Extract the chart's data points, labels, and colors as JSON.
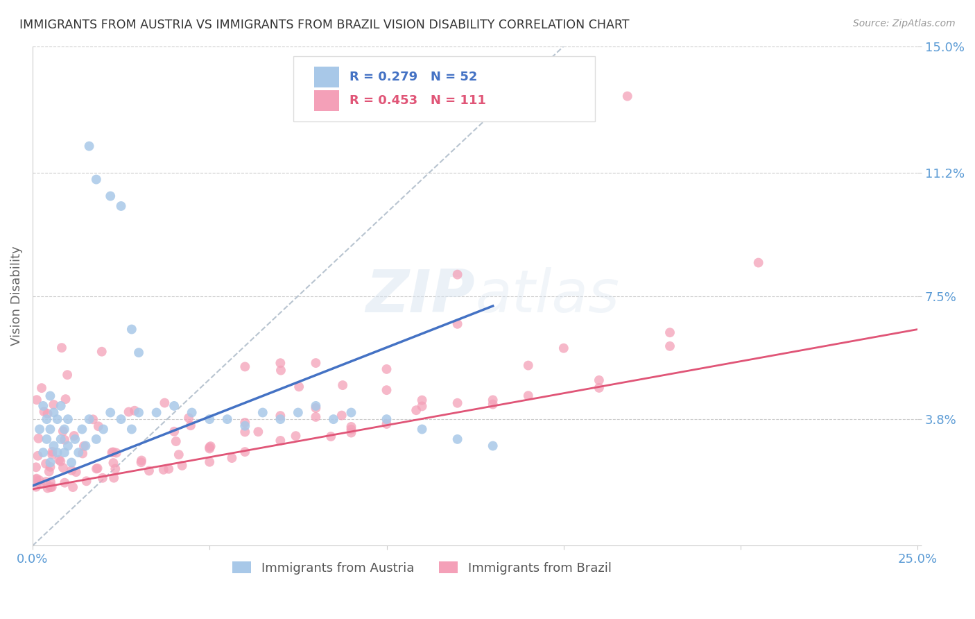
{
  "title": "IMMIGRANTS FROM AUSTRIA VS IMMIGRANTS FROM BRAZIL VISION DISABILITY CORRELATION CHART",
  "source": "Source: ZipAtlas.com",
  "ylabel": "Vision Disability",
  "xlim": [
    0.0,
    0.25
  ],
  "ylim": [
    0.0,
    0.15
  ],
  "xtick_positions": [
    0.0,
    0.05,
    0.1,
    0.15,
    0.2,
    0.25
  ],
  "xticklabels": [
    "0.0%",
    "",
    "",
    "",
    "",
    "25.0%"
  ],
  "ytick_positions": [
    0.0,
    0.038,
    0.075,
    0.112,
    0.15
  ],
  "yticklabels": [
    "",
    "3.8%",
    "7.5%",
    "11.2%",
    "15.0%"
  ],
  "legend_austria": "Immigrants from Austria",
  "legend_brazil": "Immigrants from Brazil",
  "r_austria": 0.279,
  "n_austria": 52,
  "r_brazil": 0.453,
  "n_brazil": 111,
  "color_austria": "#a8c8e8",
  "color_brazil": "#f4a0b8",
  "line_color_austria": "#4472c4",
  "line_color_brazil": "#e05577",
  "line_color_ref": "#b8c4d0",
  "tick_color": "#5b9bd5",
  "grid_color": "#cccccc",
  "title_color": "#333333",
  "ylabel_color": "#666666",
  "source_color": "#999999",
  "watermark_color": "#d8e4f0",
  "legend_box_color": "#dddddd"
}
